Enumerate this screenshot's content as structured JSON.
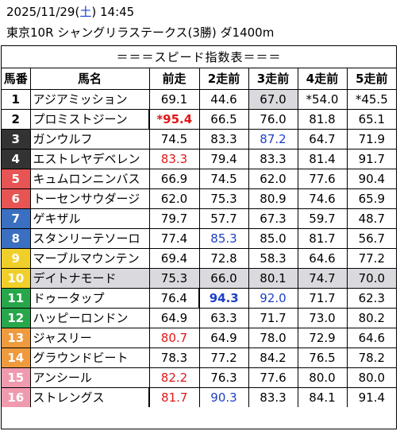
{
  "header": {
    "date": "2025/11/29",
    "open_paren": "(",
    "weekday": "土",
    "close_paren": ")",
    "time": "14:45",
    "race": "東京10R シャングリラステークス(3勝) ダ1400m"
  },
  "table": {
    "title": "＝＝＝スピード指数表＝＝＝",
    "columns": [
      "馬番",
      "馬名",
      "前走",
      "2走前",
      "3走前",
      "4走前",
      "5走前"
    ],
    "rows": [
      {
        "no": "1",
        "name": "アジアミッション",
        "bg": "#ffffff",
        "fg": "#000000",
        "vals": [
          "69.1",
          "44.6",
          "67.0",
          "*54.0",
          "*45.5"
        ],
        "styles": [
          "",
          "",
          "gray",
          "",
          ""
        ]
      },
      {
        "no": "2",
        "name": "プロミストジーン",
        "bg": "#ffffff",
        "fg": "#000000",
        "vals": [
          "*95.4",
          "66.5",
          "76.0",
          "81.8",
          "65.1"
        ],
        "styles": [
          "red bold sep-left",
          "",
          "",
          "",
          ""
        ]
      },
      {
        "no": "3",
        "name": "ガンウルフ",
        "bg": "#333333",
        "fg": "#ffffff",
        "vals": [
          "74.5",
          "83.3",
          "87.2",
          "64.7",
          "71.9"
        ],
        "styles": [
          "",
          "",
          "blue",
          "",
          ""
        ]
      },
      {
        "no": "4",
        "name": "エストレヤデベレン",
        "bg": "#333333",
        "fg": "#ffffff",
        "vals": [
          "83.3",
          "79.4",
          "83.3",
          "81.4",
          "91.7"
        ],
        "styles": [
          "red",
          "",
          "",
          "",
          ""
        ]
      },
      {
        "no": "5",
        "name": "キュムロンニンバス",
        "bg": "#e65454",
        "fg": "#ffffff",
        "vals": [
          "66.9",
          "74.5",
          "62.0",
          "77.6",
          "90.4"
        ],
        "styles": [
          "",
          "",
          "",
          "",
          ""
        ]
      },
      {
        "no": "6",
        "name": "トーセンサウダージ",
        "bg": "#e65454",
        "fg": "#ffffff",
        "vals": [
          "62.0",
          "75.3",
          "80.9",
          "74.6",
          "65.9"
        ],
        "styles": [
          "",
          "",
          "",
          "",
          ""
        ]
      },
      {
        "no": "7",
        "name": "ゲキザル",
        "bg": "#3a6fc2",
        "fg": "#ffffff",
        "vals": [
          "79.7",
          "57.7",
          "67.3",
          "59.7",
          "48.7"
        ],
        "styles": [
          "",
          "",
          "",
          "",
          ""
        ]
      },
      {
        "no": "8",
        "name": "スタンリーテソーロ",
        "bg": "#3a6fc2",
        "fg": "#ffffff",
        "vals": [
          "77.4",
          "85.3",
          "85.0",
          "81.7",
          "56.7"
        ],
        "styles": [
          "",
          "blue",
          "",
          "",
          ""
        ]
      },
      {
        "no": "9",
        "name": "マーブルマウンテン",
        "bg": "#f0cf2a",
        "fg": "#ffffff",
        "vals": [
          "69.4",
          "72.8",
          "58.3",
          "64.6",
          "77.2"
        ],
        "styles": [
          "",
          "",
          "",
          "",
          ""
        ]
      },
      {
        "no": "10",
        "name": "デイトナモード",
        "bg": "#f0cf2a",
        "fg": "#ffffff",
        "vals": [
          "75.3",
          "66.0",
          "80.1",
          "74.7",
          "70.0"
        ],
        "styles": [
          "gray",
          "gray",
          "gray",
          "gray",
          "gray"
        ],
        "namestyle": "gray"
      },
      {
        "no": "11",
        "name": "ドゥータップ",
        "bg": "#27a64a",
        "fg": "#ffffff",
        "vals": [
          "76.4",
          "94.3",
          "92.0",
          "71.7",
          "62.3"
        ],
        "styles": [
          "",
          "blue bold sep-left",
          "blue",
          "",
          ""
        ]
      },
      {
        "no": "12",
        "name": "ハッピーロンドン",
        "bg": "#27a64a",
        "fg": "#ffffff",
        "vals": [
          "64.9",
          "63.3",
          "71.7",
          "73.0",
          "80.2"
        ],
        "styles": [
          "",
          "",
          "",
          "",
          ""
        ]
      },
      {
        "no": "13",
        "name": "ジャスリー",
        "bg": "#f09a3e",
        "fg": "#ffffff",
        "vals": [
          "80.7",
          "64.9",
          "78.0",
          "72.9",
          "64.6"
        ],
        "styles": [
          "red",
          "",
          "",
          "",
          ""
        ]
      },
      {
        "no": "14",
        "name": "グラウンドビート",
        "bg": "#f09a3e",
        "fg": "#ffffff",
        "vals": [
          "78.3",
          "77.2",
          "84.2",
          "76.5",
          "78.2"
        ],
        "styles": [
          "",
          "",
          "",
          "",
          ""
        ]
      },
      {
        "no": "15",
        "name": "アンシール",
        "bg": "#f09aae",
        "fg": "#ffffff",
        "vals": [
          "82.2",
          "76.3",
          "77.6",
          "80.0",
          "80.0"
        ],
        "styles": [
          "red",
          "",
          "",
          "",
          ""
        ]
      },
      {
        "no": "16",
        "name": "ストレングス",
        "bg": "#f09aae",
        "fg": "#ffffff",
        "vals": [
          "81.7",
          "90.3",
          "83.3",
          "84.1",
          "91.4"
        ],
        "styles": [
          "red sep-left",
          "blue",
          "",
          "",
          ""
        ]
      }
    ]
  }
}
